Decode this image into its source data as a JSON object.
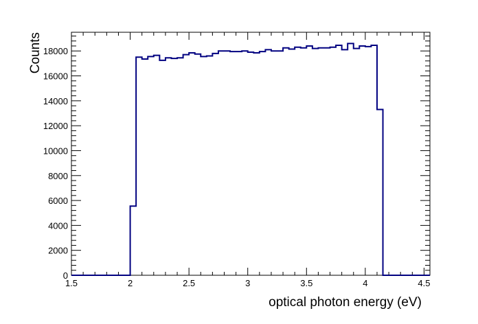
{
  "chart_data": {
    "type": "histogram",
    "title": "",
    "xlabel": "optical photon energy (eV)",
    "ylabel": "Counts",
    "xlim": [
      1.5,
      4.55
    ],
    "ylim": [
      0,
      19500
    ],
    "grid": false,
    "legend": "none",
    "line_color": "#000080",
    "x_ticks": [
      "1.5",
      "2",
      "2.5",
      "3",
      "3.5",
      "4",
      "4.5"
    ],
    "x_tick_values": [
      1.5,
      2.0,
      2.5,
      3.0,
      3.5,
      4.0,
      4.5
    ],
    "y_ticks": [
      "0",
      "2000",
      "4000",
      "6000",
      "8000",
      "10000",
      "12000",
      "14000",
      "16000",
      "18000"
    ],
    "y_tick_values": [
      0,
      2000,
      4000,
      6000,
      8000,
      10000,
      12000,
      14000,
      16000,
      18000
    ],
    "bin_edges": [
      1.5,
      1.55,
      1.6,
      1.65,
      1.7,
      1.75,
      1.8,
      1.85,
      1.9,
      1.95,
      2.0,
      2.05,
      2.1,
      2.15,
      2.2,
      2.25,
      2.3,
      2.35,
      2.4,
      2.45,
      2.5,
      2.55,
      2.6,
      2.65,
      2.7,
      2.75,
      2.8,
      2.85,
      2.9,
      2.95,
      3.0,
      3.05,
      3.1,
      3.15,
      3.2,
      3.25,
      3.3,
      3.35,
      3.4,
      3.45,
      3.5,
      3.55,
      3.6,
      3.65,
      3.7,
      3.75,
      3.8,
      3.85,
      3.9,
      3.95,
      4.0,
      4.05,
      4.1,
      4.15,
      4.2,
      4.25,
      4.3,
      4.35,
      4.4,
      4.45,
      4.5,
      4.55
    ],
    "counts": [
      0,
      0,
      0,
      0,
      0,
      0,
      0,
      0,
      0,
      0,
      5550,
      17500,
      17350,
      17550,
      17650,
      17250,
      17450,
      17400,
      17450,
      17700,
      17850,
      17750,
      17550,
      17600,
      17800,
      18000,
      18000,
      17950,
      17950,
      18000,
      17900,
      17850,
      17950,
      18100,
      18000,
      18000,
      18250,
      18150,
      18300,
      18250,
      18400,
      18200,
      18250,
      18250,
      18300,
      18450,
      18100,
      18600,
      18200,
      18400,
      18350,
      18450,
      13300,
      0,
      0,
      0,
      0,
      0,
      0,
      0,
      0
    ]
  }
}
